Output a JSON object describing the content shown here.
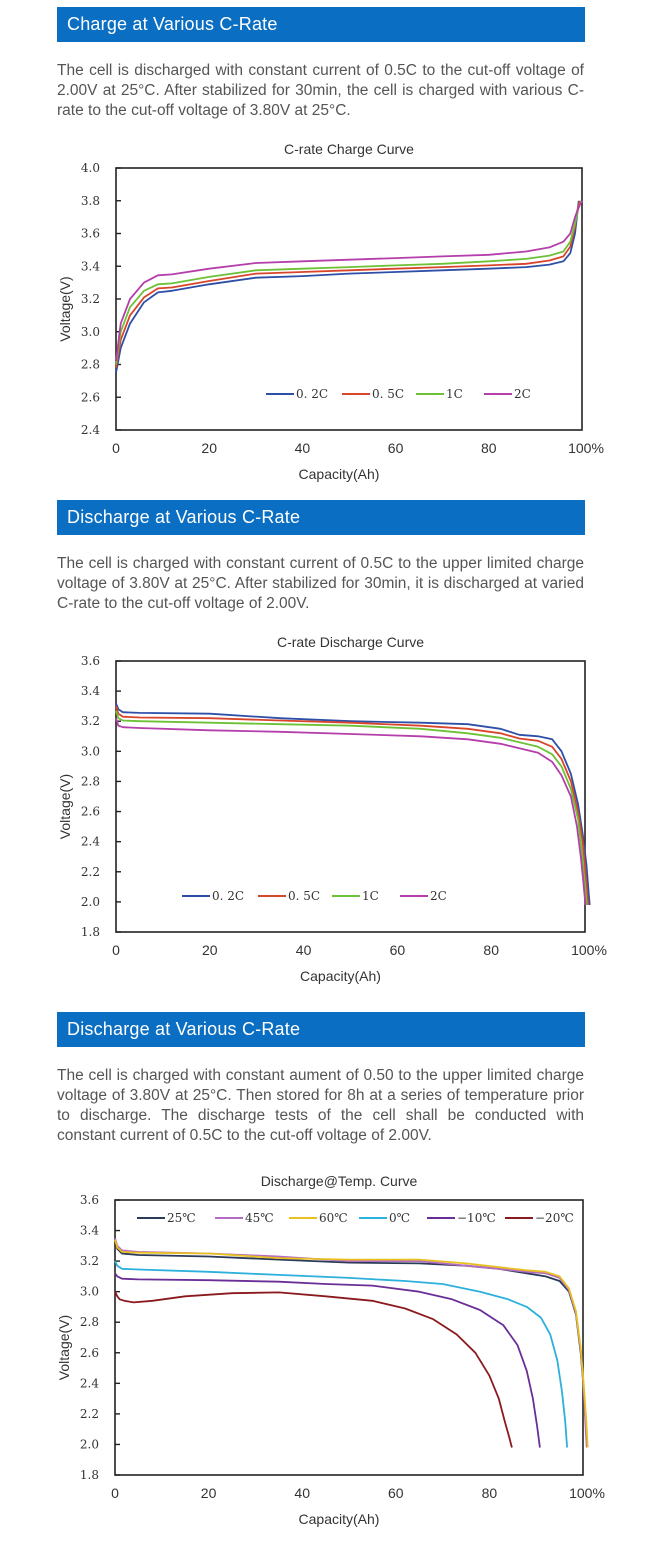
{
  "sections": [
    {
      "header": "Charge at Various C-Rate",
      "text": "The cell is discharged with constant current of 0.5C to the cut-off voltage of 2.00V at 25°C. After stabilized for 30min, the cell is charged with various C-rate to the cut-off voltage of 3.80V at 25°C."
    },
    {
      "header": "Discharge at Various  C-Rate",
      "text": "The cell is charged with constant current of 0.5C to the upper limited charge voltage of 3.80V at 25°C. After stabilized for 30min, it is discharged at varied C-rate to the cut-off voltage of 2.00V."
    },
    {
      "header": "Discharge at Various  C-Rate",
      "text": "The cell is charged with constant aument of 0.50 to the upper limited charge voltage of 3.80V at 25°C. Then stored for 8h at a series of temperature prior to discharge. The discharge tests of the cell shall be conducted with constant current of 0.5C to the cut-off voltage of 2.00V."
    }
  ],
  "chart_data": [
    {
      "type": "line",
      "title": "C-rate Charge Curve",
      "xlabel": "Capacity(Ah)",
      "ylabel": "Voltage(V)",
      "xlim": [
        0,
        100
      ],
      "ylim": [
        2.4,
        4.0
      ],
      "xticks": [
        "0",
        "20",
        "40",
        "60",
        "80",
        "100%"
      ],
      "yticks": [
        "2.4",
        "2.6",
        "2.8",
        "3.0",
        "3.2",
        "3.4",
        "3.6",
        "3.8",
        "4.0"
      ],
      "legend_position": "bottom-right",
      "series": [
        {
          "name": "0. 2C",
          "color": "#2e4fa8",
          "x": [
            0,
            1,
            3,
            6,
            9,
            12,
            20,
            30,
            40,
            50,
            60,
            70,
            80,
            88,
            93,
            96,
            97.5,
            98.5,
            99,
            99.3
          ],
          "y": [
            2.75,
            2.9,
            3.05,
            3.18,
            3.24,
            3.25,
            3.29,
            3.33,
            3.34,
            3.355,
            3.365,
            3.375,
            3.385,
            3.395,
            3.41,
            3.43,
            3.48,
            3.6,
            3.72,
            3.8
          ]
        },
        {
          "name": "0. 5C",
          "color": "#d9452b",
          "x": [
            0,
            1,
            3,
            6,
            9,
            12,
            20,
            30,
            40,
            50,
            60,
            70,
            80,
            88,
            93,
            96,
            97.5,
            98.5,
            99,
            99.5
          ],
          "y": [
            2.78,
            2.95,
            3.1,
            3.21,
            3.265,
            3.27,
            3.31,
            3.355,
            3.365,
            3.375,
            3.385,
            3.395,
            3.405,
            3.415,
            3.435,
            3.46,
            3.52,
            3.64,
            3.74,
            3.8
          ]
        },
        {
          "name": "1C",
          "color": "#6cc136",
          "x": [
            0,
            1,
            3,
            6,
            9,
            12,
            20,
            30,
            40,
            50,
            60,
            70,
            80,
            88,
            93,
            96,
            97.5,
            98.5,
            99.2,
            99.8
          ],
          "y": [
            2.8,
            3.0,
            3.15,
            3.25,
            3.29,
            3.295,
            3.335,
            3.375,
            3.385,
            3.395,
            3.405,
            3.415,
            3.43,
            3.445,
            3.465,
            3.49,
            3.55,
            3.66,
            3.75,
            3.8
          ]
        },
        {
          "name": "2C",
          "color": "#b43eaa",
          "x": [
            0,
            1,
            3,
            6,
            9,
            12,
            20,
            30,
            40,
            50,
            60,
            70,
            80,
            88,
            93,
            96,
            97.5,
            98.5,
            99.3,
            100
          ],
          "y": [
            2.82,
            3.05,
            3.2,
            3.3,
            3.345,
            3.35,
            3.385,
            3.42,
            3.43,
            3.44,
            3.45,
            3.46,
            3.47,
            3.49,
            3.515,
            3.55,
            3.6,
            3.7,
            3.76,
            3.8
          ]
        }
      ]
    },
    {
      "type": "line",
      "title": "C-rate Discharge Curve",
      "xlabel": "Capacity(Ah)",
      "ylabel": "Voltage(V)",
      "xlim": [
        0,
        100
      ],
      "ylim": [
        1.8,
        3.6
      ],
      "xticks": [
        "0",
        "20",
        "40",
        "60",
        "80",
        "100%"
      ],
      "yticks": [
        "1.8",
        "2.0",
        "2.2",
        "2.4",
        "2.6",
        "2.8",
        "3.0",
        "3.2",
        "3.4",
        "3.6"
      ],
      "legend_position": "bottom-left",
      "series": [
        {
          "name": "0. 2C",
          "color": "#2e4fa8",
          "x": [
            0,
            0.5,
            1.5,
            5,
            20,
            35,
            50,
            65,
            75,
            82,
            86,
            90,
            93,
            95,
            97,
            98.5,
            99.5,
            100.3,
            100.8,
            101
          ],
          "y": [
            3.32,
            3.28,
            3.26,
            3.255,
            3.25,
            3.22,
            3.2,
            3.19,
            3.18,
            3.15,
            3.11,
            3.1,
            3.08,
            3.0,
            2.85,
            2.65,
            2.45,
            2.25,
            2.05,
            1.98
          ]
        },
        {
          "name": "0. 5C",
          "color": "#d9452b",
          "x": [
            0,
            0.5,
            1.5,
            5,
            20,
            35,
            50,
            65,
            75,
            82,
            86,
            90,
            93,
            95,
            97,
            98.5,
            99.5,
            100.1,
            100.5,
            100.7
          ],
          "y": [
            3.3,
            3.25,
            3.23,
            3.225,
            3.22,
            3.205,
            3.19,
            3.17,
            3.15,
            3.12,
            3.085,
            3.07,
            3.03,
            2.95,
            2.8,
            2.6,
            2.4,
            2.2,
            2.05,
            1.98
          ]
        },
        {
          "name": "1C",
          "color": "#6cc136",
          "x": [
            0,
            0.5,
            1.5,
            5,
            20,
            35,
            50,
            65,
            75,
            82,
            86,
            90,
            93,
            95,
            97,
            98.5,
            99.3,
            99.9,
            100.2,
            100.4
          ],
          "y": [
            3.27,
            3.22,
            3.205,
            3.2,
            3.19,
            3.18,
            3.17,
            3.15,
            3.12,
            3.09,
            3.06,
            3.03,
            2.98,
            2.9,
            2.75,
            2.55,
            2.35,
            2.15,
            2.05,
            1.98
          ]
        },
        {
          "name": "2C",
          "color": "#b43eaa",
          "x": [
            0,
            0.5,
            1.5,
            5,
            20,
            35,
            50,
            65,
            75,
            82,
            86,
            90,
            93,
            95,
            97,
            98.3,
            99.1,
            99.6,
            99.9,
            100.1
          ],
          "y": [
            3.22,
            3.17,
            3.16,
            3.155,
            3.14,
            3.13,
            3.115,
            3.1,
            3.08,
            3.05,
            3.02,
            2.99,
            2.93,
            2.84,
            2.7,
            2.5,
            2.3,
            2.15,
            2.05,
            1.98
          ]
        }
      ]
    },
    {
      "type": "line",
      "title": "Discharge@Temp. Curve",
      "xlabel": "Capacity(Ah)",
      "ylabel": "Voltage(V)",
      "xlim": [
        0,
        100
      ],
      "ylim": [
        1.8,
        3.6
      ],
      "xticks": [
        "0",
        "20",
        "40",
        "60",
        "80",
        "100%"
      ],
      "yticks": [
        "1.8",
        "2.0",
        "2.2",
        "2.4",
        "2.6",
        "2.8",
        "3.0",
        "3.2",
        "3.4",
        "3.6"
      ],
      "legend_position": "top",
      "series": [
        {
          "name": "25℃",
          "color": "#2b3a57",
          "x": [
            0,
            0.5,
            1.5,
            5,
            20,
            35,
            50,
            65,
            75,
            82,
            88,
            92,
            95,
            97,
            98.5,
            99.5,
            100.2,
            100.6,
            100.9
          ],
          "y": [
            3.35,
            3.28,
            3.25,
            3.24,
            3.23,
            3.21,
            3.19,
            3.185,
            3.17,
            3.15,
            3.12,
            3.1,
            3.07,
            3.0,
            2.85,
            2.6,
            2.35,
            2.15,
            1.98
          ]
        },
        {
          "name": "45℃",
          "color": "#b46bc4",
          "x": [
            0,
            0.5,
            1.5,
            5,
            20,
            35,
            50,
            65,
            75,
            82,
            88,
            92,
            95,
            97,
            98.5,
            99.5,
            100.1,
            100.5,
            100.8
          ],
          "y": [
            3.35,
            3.3,
            3.27,
            3.26,
            3.25,
            3.23,
            3.2,
            3.2,
            3.17,
            3.15,
            3.13,
            3.12,
            3.09,
            3.01,
            2.86,
            2.62,
            2.38,
            2.15,
            1.98
          ]
        },
        {
          "name": "60℃",
          "color": "#e8c020",
          "x": [
            0,
            0.5,
            1.5,
            5,
            20,
            35,
            50,
            65,
            75,
            82,
            88,
            92,
            95,
            97,
            98.5,
            99.5,
            100.2,
            100.7,
            101
          ],
          "y": [
            3.34,
            3.29,
            3.26,
            3.255,
            3.25,
            3.22,
            3.21,
            3.21,
            3.185,
            3.16,
            3.14,
            3.13,
            3.1,
            3.02,
            2.87,
            2.63,
            2.38,
            2.15,
            1.98
          ]
        },
        {
          "name": "0℃",
          "color": "#2cb0dc",
          "x": [
            0,
            0.5,
            1.5,
            5,
            20,
            35,
            50,
            62,
            70,
            78,
            84,
            88,
            91,
            93,
            94.5,
            95.5,
            96.2,
            96.6
          ],
          "y": [
            3.2,
            3.17,
            3.15,
            3.145,
            3.13,
            3.11,
            3.09,
            3.07,
            3.05,
            3.0,
            2.95,
            2.9,
            2.83,
            2.72,
            2.55,
            2.35,
            2.15,
            1.98
          ]
        },
        {
          "name": "−10℃",
          "color": "#6a2f96",
          "x": [
            0,
            0.5,
            1.5,
            5,
            20,
            35,
            45,
            55,
            65,
            72,
            78,
            83,
            86,
            88,
            89.3,
            90.2,
            90.8
          ],
          "y": [
            3.12,
            3.1,
            3.085,
            3.08,
            3.075,
            3.065,
            3.05,
            3.04,
            3.0,
            2.95,
            2.88,
            2.78,
            2.65,
            2.48,
            2.3,
            2.12,
            1.98
          ]
        },
        {
          "name": "−20℃",
          "color": "#8b1a1e",
          "x": [
            0,
            0.5,
            1,
            2,
            4,
            8,
            15,
            25,
            35,
            45,
            55,
            62,
            68,
            73,
            77,
            80,
            82,
            83.3,
            84.2,
            84.8
          ],
          "y": [
            3.0,
            2.97,
            2.95,
            2.94,
            2.93,
            2.94,
            2.97,
            2.99,
            2.995,
            2.97,
            2.94,
            2.89,
            2.82,
            2.72,
            2.6,
            2.45,
            2.3,
            2.15,
            2.05,
            1.98
          ]
        }
      ]
    }
  ]
}
